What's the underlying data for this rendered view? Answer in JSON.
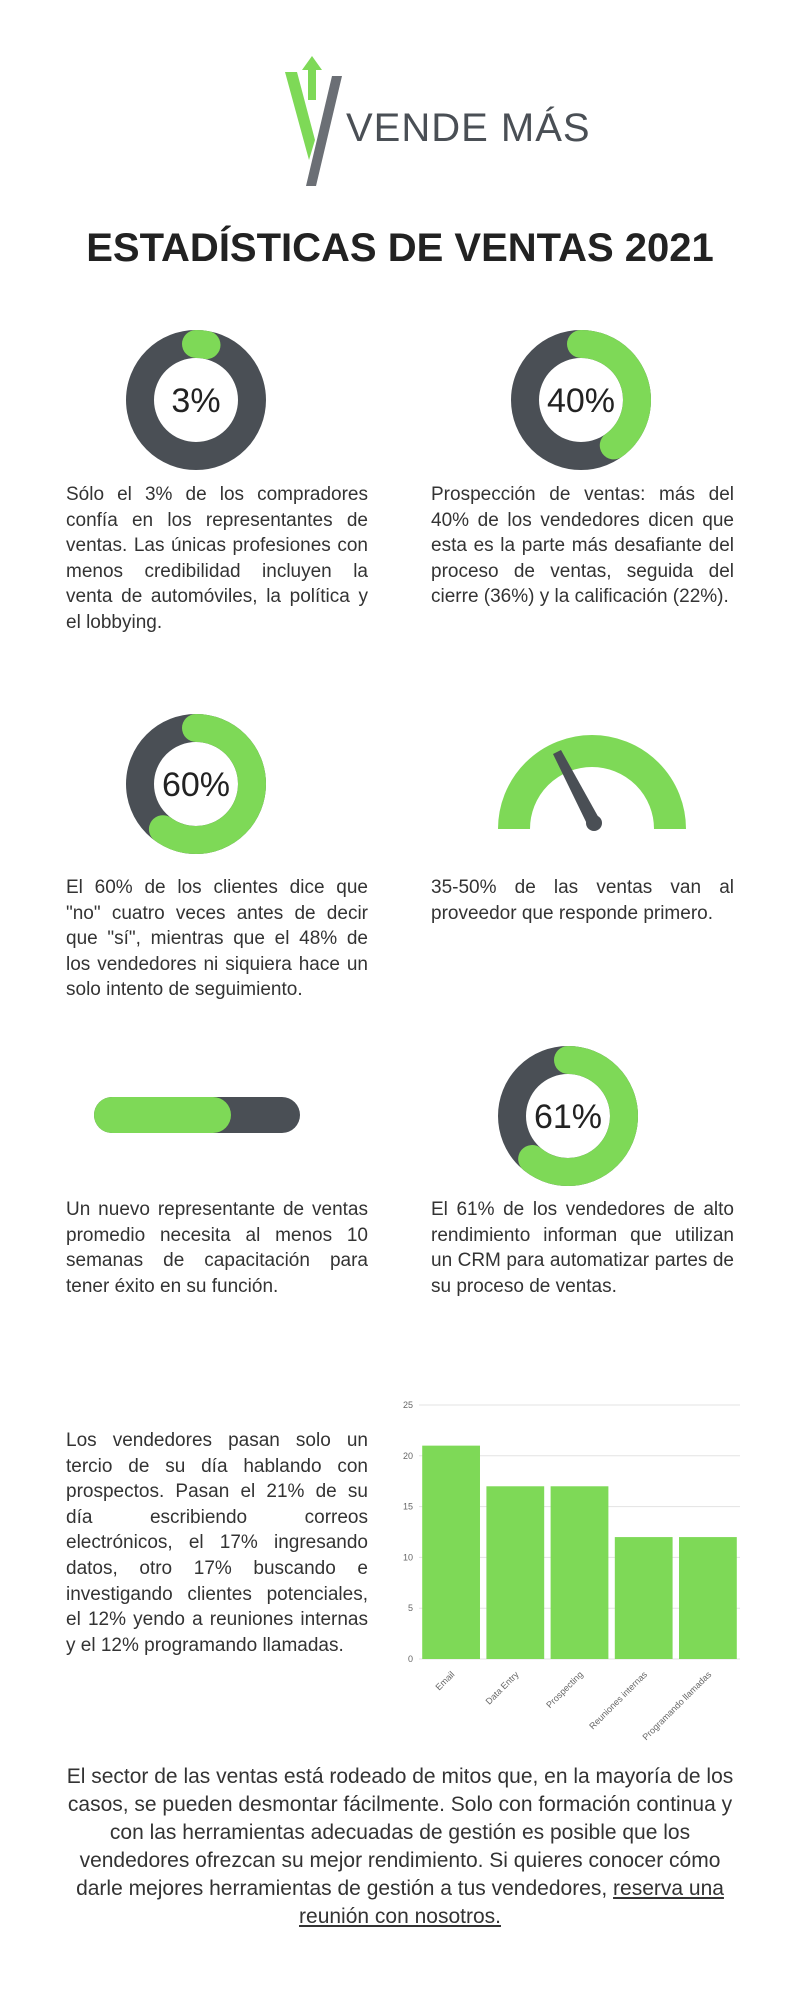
{
  "header": {
    "brand": "VENDE MÁS",
    "title": "ESTADÍSTICAS DE VENTAS 2021"
  },
  "colors": {
    "fill": "#7ed957",
    "track": "#4a4f55"
  },
  "blocks": [
    {
      "donut": {
        "value": 3,
        "label": "3%"
      },
      "text": "Sólo el 3% de los compradores confía en los representantes de ventas. Las únicas profesiones con menos credibilidad incluyen la venta de automóviles, la política y el lobbying."
    },
    {
      "donut": {
        "value": 40,
        "label": "40%"
      },
      "text": "Prospección de ventas: más del 40% de los vendedores dicen que esta es la parte más desafiante del proceso de ventas, seguida del cierre (36%) y la calificación (22%)."
    },
    {
      "donut": {
        "value": 60,
        "label": "60%"
      },
      "text": "El 60% de los clientes dice que \"no\" cuatro veces antes de decir que \"sí\", mientras que el 48% de los vendedores ni siquiera hace un solo intento de seguimiento."
    },
    {
      "text": "35-50% de las ventas van al proveedor que responde primero."
    },
    {
      "text": "Un nuevo representante de ventas promedio necesita al menos 10 semanas de capacitación para tener éxito en su función."
    },
    {
      "donut": {
        "value": 61,
        "label": "61%"
      },
      "text": "El 61% de los vendedores de alto rendimiento informan que utilizan un CRM para automatizar partes de su proceso de ventas."
    },
    {
      "text": "Los vendedores pasan solo un tercio de su día hablando con prospectos. Pasan el 21% de su día escribiendo correos electrónicos, el 17% ingresando datos, otro 17% buscando e investigando clientes potenciales, el 12% yendo a reuniones internas y el 12% programando llamadas."
    }
  ],
  "bar_chart": {
    "type": "bar",
    "categories": [
      "Email",
      "Data Entry",
      "Prospecting",
      "Reuniones internas",
      "Programando llamadas"
    ],
    "values": [
      21,
      17,
      17,
      12,
      12
    ],
    "ylim": [
      0,
      25
    ],
    "yticks": [
      0,
      5,
      10,
      15,
      20,
      25
    ],
    "grid": true
  },
  "footer": {
    "text": "El sector de las ventas está rodeado de mitos que, en la mayoría de los casos, se pueden desmontar fácilmente. Solo con formación continua y con las herramientas adecuadas de gestión es posible que los vendedores ofrezcan su mejor rendimiento. Si quieres conocer cómo darle mejores herramientas de gestión a tus vendedores, ",
    "link": "reserva una reunión con nosotros."
  }
}
